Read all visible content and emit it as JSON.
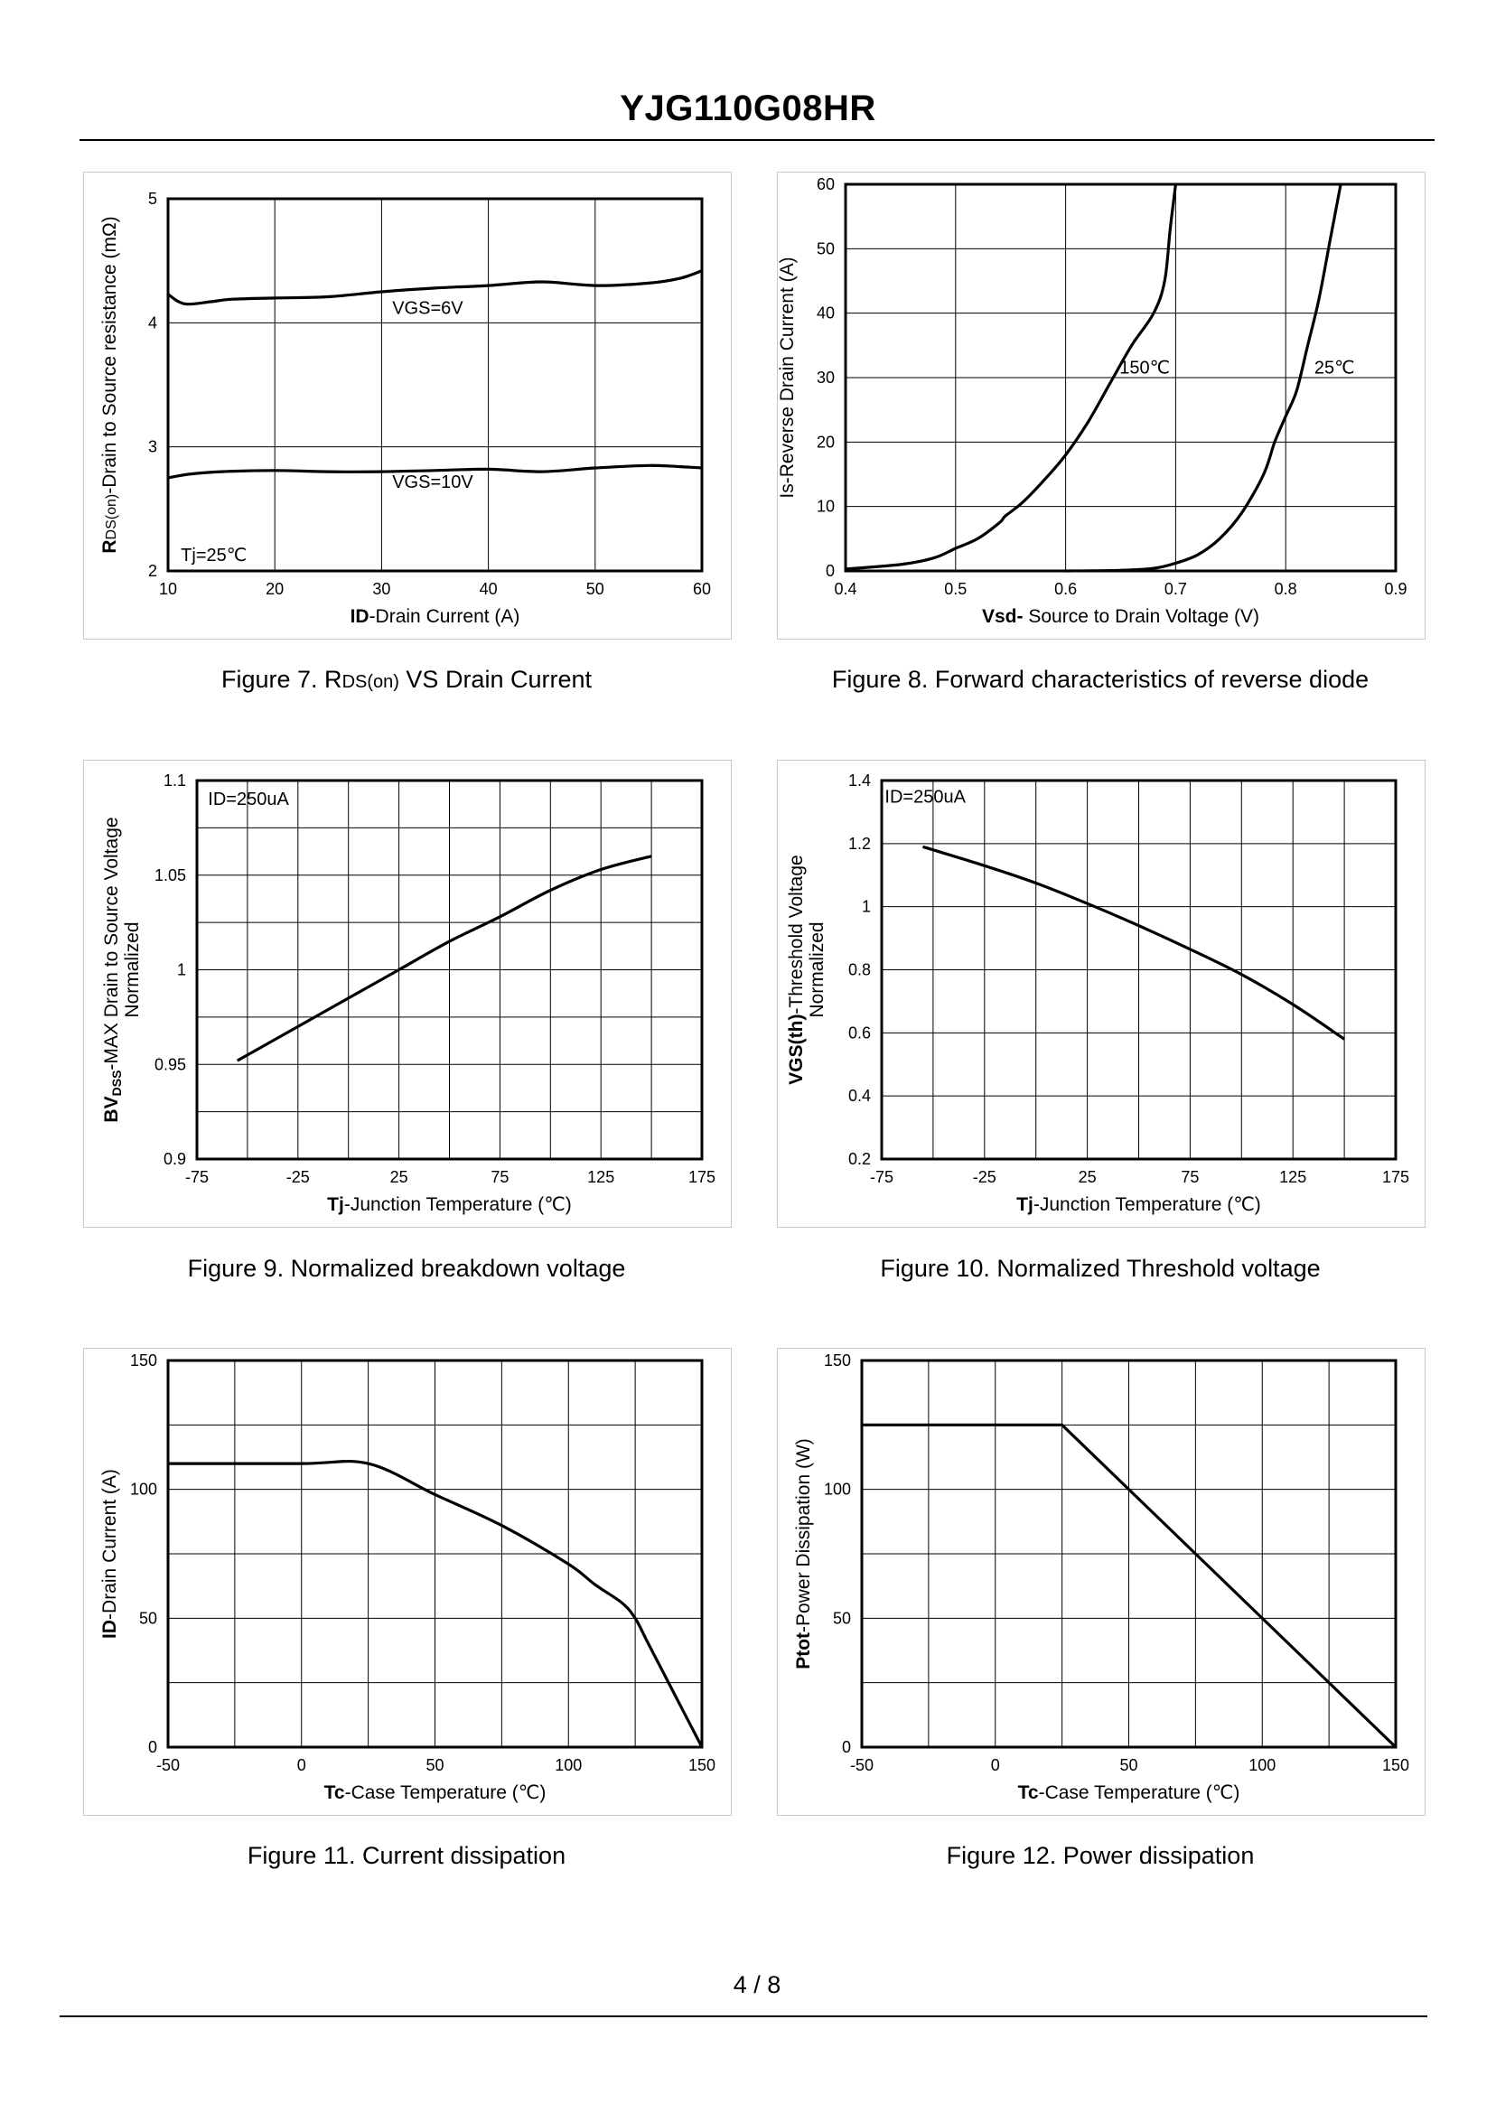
{
  "header": {
    "title": "YJG110G08HR"
  },
  "footer": {
    "page": "4 / 8"
  },
  "chart_data": [
    {
      "id": "fig7",
      "type": "line",
      "caption": "Figure 7.  RDS(on) VS Drain Current",
      "caption_parts": {
        "prefix": "Figure 7.  R",
        "sub": "DS(on)",
        "suffix": " VS Drain Current"
      },
      "xlabel": {
        "bold": "ID",
        "rest": "-Drain Current (A)"
      },
      "ylabel": {
        "bold": "R",
        "sub": "DS(on)",
        "rest": "-Drain to Source resistance (mΩ)"
      },
      "xlim": [
        10,
        60
      ],
      "ylim": [
        2,
        5
      ],
      "xticks": [
        10,
        20,
        30,
        40,
        50,
        60
      ],
      "yticks": [
        2,
        3,
        4,
        5
      ],
      "grid_x": 5,
      "grid_y": 3,
      "annotations": [
        {
          "text": "VGS=6V",
          "x": 31,
          "y": 4.07,
          "anchor": "start"
        },
        {
          "text": "VGS=10V",
          "x": 31,
          "y": 2.67,
          "anchor": "start"
        },
        {
          "text": "Tj=25℃",
          "x": 11.2,
          "y": 2.08,
          "anchor": "start"
        }
      ],
      "series": [
        {
          "name": "VGS=6V",
          "x": [
            10,
            11,
            12,
            14,
            16,
            20,
            25,
            30,
            35,
            40,
            45,
            50,
            55,
            58,
            60
          ],
          "y": [
            4.23,
            4.17,
            4.15,
            4.17,
            4.19,
            4.2,
            4.21,
            4.25,
            4.28,
            4.3,
            4.33,
            4.3,
            4.32,
            4.36,
            4.42
          ]
        },
        {
          "name": "VGS=10V",
          "x": [
            10,
            12,
            15,
            20,
            25,
            30,
            35,
            40,
            45,
            50,
            55,
            58,
            60
          ],
          "y": [
            2.75,
            2.78,
            2.8,
            2.81,
            2.8,
            2.8,
            2.81,
            2.82,
            2.8,
            2.83,
            2.85,
            2.84,
            2.83
          ]
        }
      ]
    },
    {
      "id": "fig8",
      "type": "line",
      "caption": "Figure 8.  Forward characteristics of reverse diode",
      "xlabel": {
        "bold": "Vsd-",
        "rest": " Source to Drain Voltage (V)"
      },
      "ylabel": {
        "bold": "",
        "sub": "",
        "rest": "Is-Reverse  Drain Current (A)"
      },
      "xlim": [
        0.4,
        0.9
      ],
      "ylim": [
        0,
        60
      ],
      "xticks": [
        0.4,
        0.5,
        0.6,
        0.7,
        0.8,
        0.9
      ],
      "yticks": [
        0,
        10,
        20,
        30,
        40,
        50,
        60
      ],
      "grid_x": 5,
      "grid_y": 6,
      "annotations": [
        {
          "text": "150℃",
          "x": 0.649,
          "y": 30.6,
          "anchor": "start"
        },
        {
          "text": "25℃",
          "x": 0.826,
          "y": 30.6,
          "anchor": "start"
        }
      ],
      "series": [
        {
          "name": "150℃",
          "x": [
            0.4,
            0.45,
            0.48,
            0.5,
            0.52,
            0.54,
            0.545,
            0.56,
            0.58,
            0.6,
            0.62,
            0.64,
            0.66,
            0.68,
            0.69,
            0.695,
            0.7
          ],
          "y": [
            0.3,
            1,
            2,
            3.5,
            5,
            7.5,
            8.5,
            10.5,
            14,
            18,
            23,
            29,
            35,
            40,
            45,
            53,
            60
          ]
        },
        {
          "name": "25℃",
          "x": [
            0.6,
            0.65,
            0.68,
            0.7,
            0.72,
            0.74,
            0.76,
            0.78,
            0.79,
            0.8,
            0.81,
            0.82,
            0.83,
            0.84,
            0.85
          ],
          "y": [
            0,
            0.1,
            0.4,
            1.2,
            2.5,
            5,
            9,
            15,
            20,
            24,
            28,
            35,
            42,
            51,
            60
          ]
        }
      ]
    },
    {
      "id": "fig9",
      "type": "line",
      "caption": "Figure 9.  Normalized breakdown voltage",
      "xlabel": {
        "bold": "Tj",
        "rest": "-Junction  Temperature  (℃)"
      },
      "ylabel": {
        "line1_bold": "BV",
        "line1_sub": "DSS",
        "line1_rest": "-MAX Drain to Source Voltage",
        "line2": "Normalized"
      },
      "xlim": [
        -75,
        175
      ],
      "ylim": [
        0.9,
        1.1
      ],
      "xticks": [
        -75,
        -25,
        25,
        75,
        125,
        175
      ],
      "yticks": [
        0.9,
        0.95,
        1,
        1.05,
        1.1
      ],
      "grid_x": 10,
      "grid_y": 8,
      "annotations": [
        {
          "text": "ID=250uA",
          "x": -69.5,
          "y": 1.087,
          "anchor": "start"
        }
      ],
      "series": [
        {
          "name": "BVdss",
          "x": [
            -55,
            -25,
            0,
            25,
            50,
            75,
            100,
            125,
            150
          ],
          "y": [
            0.952,
            0.97,
            0.985,
            1.0,
            1.015,
            1.028,
            1.042,
            1.053,
            1.06
          ]
        }
      ]
    },
    {
      "id": "fig10",
      "type": "line",
      "caption": "Figure 10.  Normalized Threshold voltage",
      "xlabel": {
        "bold": "Tj",
        "rest": "-Junction  Temperature  (℃)"
      },
      "ylabel": {
        "line1_bold": "VGS(th)",
        "line1_sub": "",
        "line1_rest": "-Threshold  Voltage",
        "line2": "Normalized"
      },
      "xlim": [
        -75,
        175
      ],
      "ylim": [
        0.2,
        1.4
      ],
      "xticks": [
        -75,
        -25,
        25,
        75,
        125,
        175
      ],
      "yticks": [
        0.2,
        0.4,
        0.6,
        0.8,
        1,
        1.2,
        1.4
      ],
      "grid_x": 10,
      "grid_y": 6,
      "annotations": [
        {
          "text": "ID=250uA",
          "x": -73.5,
          "y": 1.33,
          "anchor": "start"
        }
      ],
      "series": [
        {
          "name": "VGS(th)",
          "x": [
            -55,
            -25,
            0,
            25,
            50,
            75,
            100,
            125,
            150
          ],
          "y": [
            1.19,
            1.13,
            1.075,
            1.01,
            0.94,
            0.865,
            0.785,
            0.69,
            0.58
          ]
        }
      ]
    },
    {
      "id": "fig11",
      "type": "line",
      "caption": "Figure 11.  Current dissipation",
      "xlabel": {
        "bold": "Tc",
        "rest": "-Case Temperature  (℃)"
      },
      "ylabel": {
        "bold": "ID",
        "sub": "",
        "rest": "-Drain Current (A)"
      },
      "xlim": [
        -50,
        150
      ],
      "ylim": [
        0,
        150
      ],
      "xticks": [
        -50,
        0,
        50,
        100,
        150
      ],
      "yticks": [
        0,
        50,
        100,
        150
      ],
      "grid_x": 8,
      "grid_y": 6,
      "annotations": [],
      "series": [
        {
          "name": "ID",
          "x": [
            -50,
            0,
            25,
            50,
            75,
            100,
            110,
            120,
            125,
            130,
            140,
            150
          ],
          "y": [
            110,
            110,
            110,
            98,
            86,
            71,
            63,
            56,
            50,
            40,
            20,
            0
          ]
        }
      ]
    },
    {
      "id": "fig12",
      "type": "line",
      "caption": "Figure 12.  Power dissipation",
      "xlabel": {
        "bold": "Tc",
        "rest": "-Case Temperature  (℃)"
      },
      "ylabel": {
        "bold": "Ptot",
        "sub": "",
        "rest": "-Power Dissipation (W)"
      },
      "xlim": [
        -50,
        150
      ],
      "ylim": [
        0,
        150
      ],
      "xticks": [
        -50,
        0,
        50,
        100,
        150
      ],
      "yticks": [
        0,
        50,
        100,
        150
      ],
      "grid_x": 8,
      "grid_y": 6,
      "annotations": [],
      "series": [
        {
          "name": "Ptot",
          "x": [
            -50,
            25,
            150
          ],
          "y": [
            125,
            125,
            0
          ]
        }
      ]
    }
  ]
}
